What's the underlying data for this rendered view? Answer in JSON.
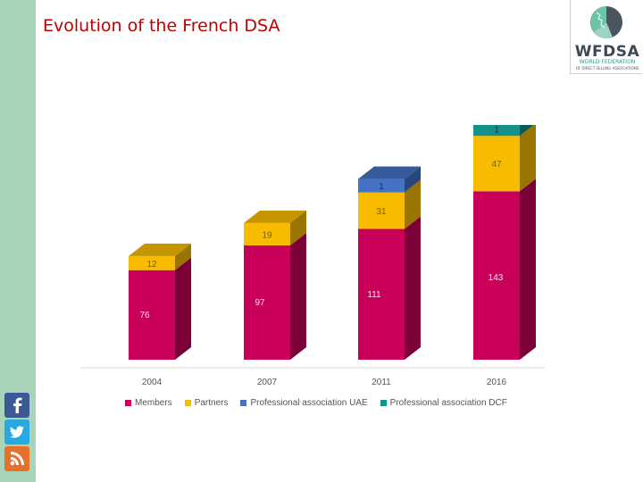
{
  "title": "Evolution of the French DSA",
  "logo": {
    "name": "WFDSA",
    "subtitle": "WORLD FEDERATION",
    "subtitle2": "OF DIRECT SELLING ASSOCIATIONS"
  },
  "social": [
    "facebook-icon",
    "twitter-icon",
    "rss-icon"
  ],
  "colors": {
    "title": "#c00000",
    "members": "#c8005a",
    "partners": "#f7bb00",
    "uae": "#4472c4",
    "dcf": "#13918a",
    "strip": "#a9d4b9"
  },
  "chart_data": {
    "type": "bar",
    "stacked": true,
    "categories": [
      "2004",
      "2007",
      "2011",
      "2016"
    ],
    "series": [
      {
        "name": "Members",
        "values": [
          76,
          97,
          111,
          143
        ]
      },
      {
        "name": "Partners",
        "values": [
          12,
          19,
          31,
          47
        ]
      },
      {
        "name": "Professional association UAE",
        "values": [
          0,
          0,
          1,
          0
        ]
      },
      {
        "name": "Professional association DCF",
        "values": [
          0,
          0,
          0,
          1
        ]
      }
    ],
    "labels": [
      [
        "76",
        "97",
        "111",
        "143"
      ],
      [
        "12",
        "19",
        "31",
        "47"
      ],
      [
        "",
        "",
        "1",
        ""
      ],
      [
        "",
        "",
        "",
        "1"
      ]
    ],
    "legend_position": "bottom",
    "grid": false
  }
}
